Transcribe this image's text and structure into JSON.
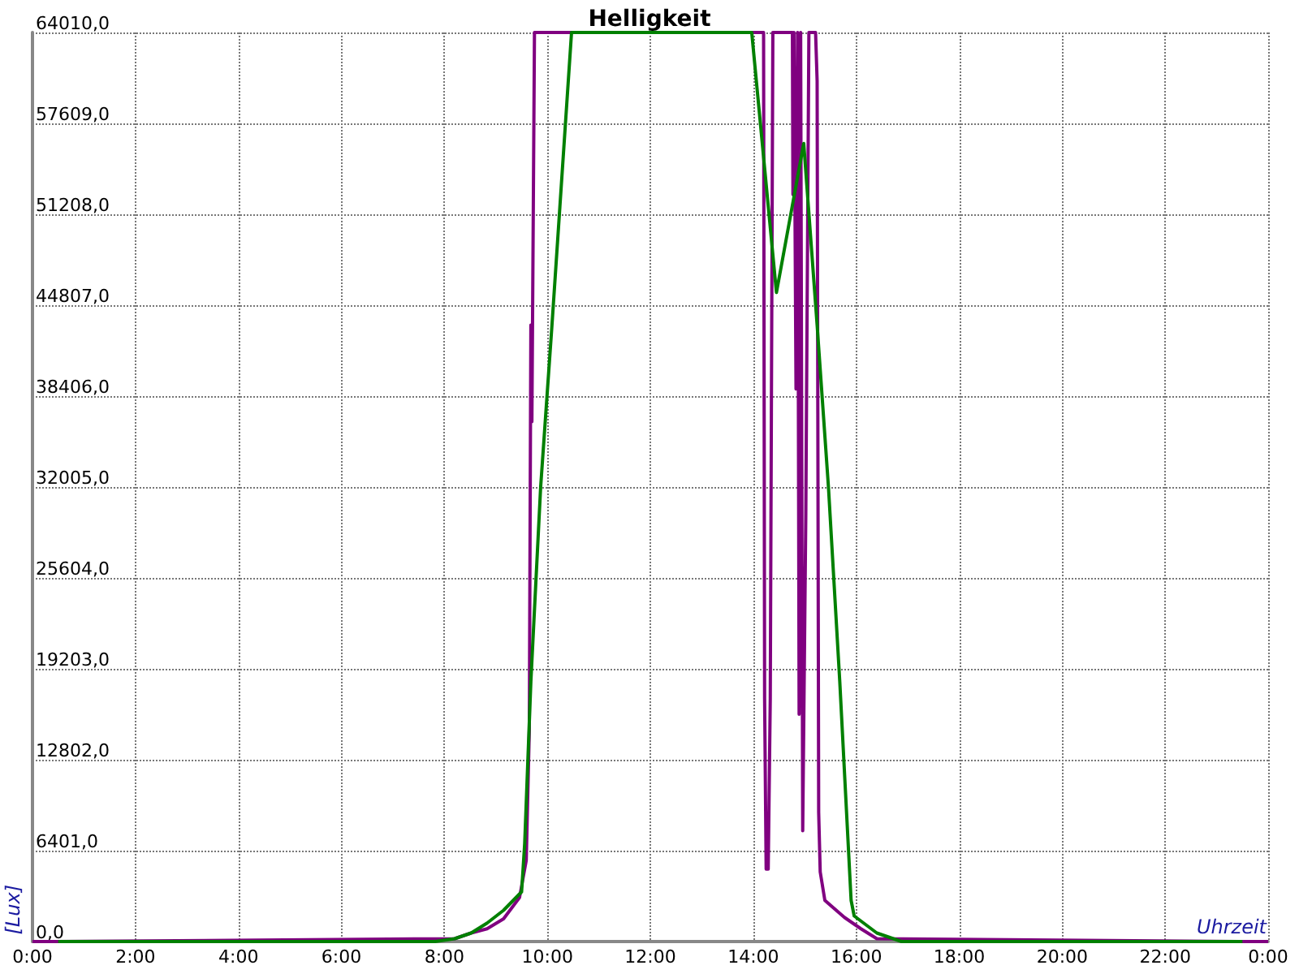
{
  "chart_data": {
    "type": "line",
    "title": "Helligkeit",
    "xlabel": "Uhrzeit",
    "ylabel": "[Lux]",
    "xlim": [
      0,
      24
    ],
    "xticks": [
      {
        "value": 0,
        "label": "0:00"
      },
      {
        "value": 2,
        "label": "2:00"
      },
      {
        "value": 4,
        "label": "4:00"
      },
      {
        "value": 6,
        "label": "6:00"
      },
      {
        "value": 8,
        "label": "8:00"
      },
      {
        "value": 10,
        "label": "10:00"
      },
      {
        "value": 12,
        "label": "12:00"
      },
      {
        "value": 14,
        "label": "14:00"
      },
      {
        "value": 16,
        "label": "16:00"
      },
      {
        "value": 18,
        "label": "18:00"
      },
      {
        "value": 20,
        "label": "20:00"
      },
      {
        "value": 22,
        "label": "22:00"
      },
      {
        "value": 24,
        "label": "0:00"
      }
    ],
    "ylim": [
      0,
      64010
    ],
    "yticks": [
      {
        "value": 0,
        "label": "0,0"
      },
      {
        "value": 6401,
        "label": "6401,0"
      },
      {
        "value": 12802,
        "label": "12802,0"
      },
      {
        "value": 19203,
        "label": "19203,0"
      },
      {
        "value": 25604,
        "label": "25604,0"
      },
      {
        "value": 32005,
        "label": "32005,0"
      },
      {
        "value": 38406,
        "label": "38406,0"
      },
      {
        "value": 44807,
        "label": "44807,0"
      },
      {
        "value": 51208,
        "label": "51208,0"
      },
      {
        "value": 57609,
        "label": "57609,0"
      },
      {
        "value": 64010,
        "label": "64010,0"
      }
    ],
    "grid": true,
    "marker": "none",
    "line_style": "solid",
    "series": [
      {
        "color": "#800080",
        "x": [
          0,
          0.4,
          8.2,
          8.52,
          8.83,
          9.15,
          9.46,
          9.59,
          9.65,
          9.68,
          9.7,
          9.75,
          14.2,
          14.22,
          14.25,
          14.29,
          14.33,
          14.38,
          14.76,
          14.77,
          14.79,
          14.83,
          14.86,
          14.89,
          14.92,
          14.96,
          15.02,
          15.08,
          15.21,
          15.24,
          15.27,
          15.3,
          15.39,
          15.77,
          16.09,
          16.4,
          23.6,
          24
        ],
        "values": [
          0,
          0,
          200,
          600,
          900,
          1600,
          3100,
          5700,
          14900,
          43400,
          36600,
          64010,
          64010,
          17100,
          5100,
          5100,
          17100,
          64010,
          64010,
          52600,
          64010,
          38900,
          64010,
          16000,
          64010,
          7800,
          30000,
          64010,
          64010,
          60600,
          9100,
          4900,
          2900,
          1700,
          900,
          200,
          0,
          0
        ]
      },
      {
        "color": "#008000",
        "x": [
          0.5,
          7.82,
          8.2,
          8.52,
          8.83,
          9.15,
          9.5,
          9.56,
          9.68,
          9.87,
          10.09,
          10.47,
          13.97,
          14.45,
          14.98,
          15.24,
          15.46,
          15.68,
          15.9,
          15.96,
          16.4,
          16.88,
          23.5
        ],
        "values": [
          0,
          0,
          200,
          600,
          1300,
          2200,
          3500,
          6900,
          18300,
          32000,
          43400,
          64010,
          64010,
          45700,
          56200,
          43400,
          32000,
          18300,
          2900,
          1800,
          600,
          0,
          0
        ]
      }
    ]
  }
}
